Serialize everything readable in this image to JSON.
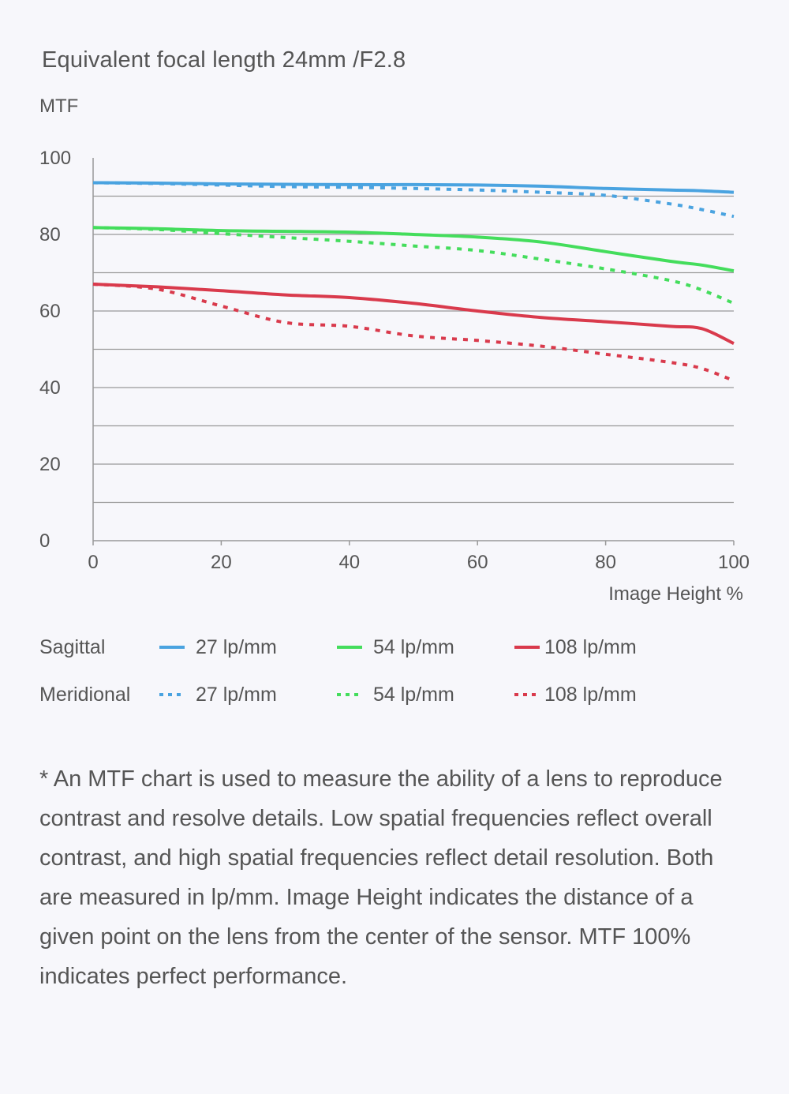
{
  "chart_data": {
    "type": "line",
    "title": "Equivalent focal length 24mm /F2.8",
    "ylabel": "MTF",
    "xlabel": "Image Height %",
    "xlim": [
      0,
      100
    ],
    "ylim": [
      0,
      100
    ],
    "xticks": [
      0,
      20,
      40,
      60,
      80,
      100
    ],
    "yticks": [
      0,
      20,
      40,
      60,
      80,
      100
    ],
    "grid": true,
    "gridlines": [
      10,
      20,
      30,
      40,
      50,
      60,
      70,
      80,
      90
    ],
    "x": [
      0,
      10,
      20,
      30,
      40,
      50,
      60,
      70,
      80,
      90,
      95,
      100
    ],
    "series": [
      {
        "group": "Sagittal",
        "name": "27 lp/mm",
        "style": "solid",
        "color": "#4aa3e0",
        "values": [
          93.5,
          93.4,
          93.2,
          93.1,
          93.0,
          93.0,
          92.9,
          92.6,
          92.0,
          91.6,
          91.4,
          91.0
        ]
      },
      {
        "group": "Sagittal",
        "name": "54 lp/mm",
        "style": "solid",
        "color": "#44dd5c",
        "values": [
          81.8,
          81.5,
          81.0,
          80.8,
          80.6,
          80.0,
          79.3,
          78.0,
          75.5,
          73.0,
          72.0,
          70.5
        ]
      },
      {
        "group": "Sagittal",
        "name": "108 lp/mm",
        "style": "solid",
        "color": "#d93a4c",
        "values": [
          67.0,
          66.3,
          65.3,
          64.2,
          63.5,
          62.0,
          60.0,
          58.3,
          57.2,
          56.0,
          55.4,
          51.5
        ]
      },
      {
        "group": "Meridional",
        "name": "27 lp/mm",
        "style": "dotted",
        "color": "#4aa3e0",
        "values": [
          93.5,
          93.3,
          92.9,
          92.5,
          92.3,
          92.0,
          91.6,
          91.0,
          90.2,
          88.0,
          86.5,
          84.7
        ]
      },
      {
        "group": "Meridional",
        "name": "54 lp/mm",
        "style": "dotted",
        "color": "#44dd5c",
        "values": [
          81.8,
          81.3,
          80.2,
          79.2,
          78.2,
          77.0,
          75.8,
          73.5,
          71.0,
          68.0,
          65.5,
          62.0
        ]
      },
      {
        "group": "Meridional",
        "name": "108 lp/mm",
        "style": "dotted",
        "color": "#d93a4c",
        "values": [
          67.0,
          65.7,
          61.3,
          57.0,
          56.0,
          53.5,
          52.3,
          50.8,
          48.7,
          46.6,
          45.0,
          41.8
        ]
      }
    ],
    "legend": {
      "placement": "bottom",
      "rows": [
        {
          "label": "Sagittal",
          "style": "solid",
          "items": [
            {
              "label": "27 lp/mm",
              "color": "#4aa3e0"
            },
            {
              "label": "54 lp/mm",
              "color": "#44dd5c"
            },
            {
              "label": "108 lp/mm",
              "color": "#d93a4c"
            }
          ]
        },
        {
          "label": "Meridional",
          "style": "dotted",
          "items": [
            {
              "label": "27 lp/mm",
              "color": "#4aa3e0"
            },
            {
              "label": "54 lp/mm",
              "color": "#44dd5c"
            },
            {
              "label": "108 lp/mm",
              "color": "#d93a4c"
            }
          ]
        }
      ]
    }
  },
  "note": "* An MTF chart is used to measure the ability of a lens to reproduce contrast and resolve details. Low spatial frequencies reflect overall contrast, and high spatial frequencies reflect detail resolution. Both are measured in lp/mm. Image Height indicates the distance of a given point on the lens from the center of the sensor. MTF 100% indicates perfect performance."
}
